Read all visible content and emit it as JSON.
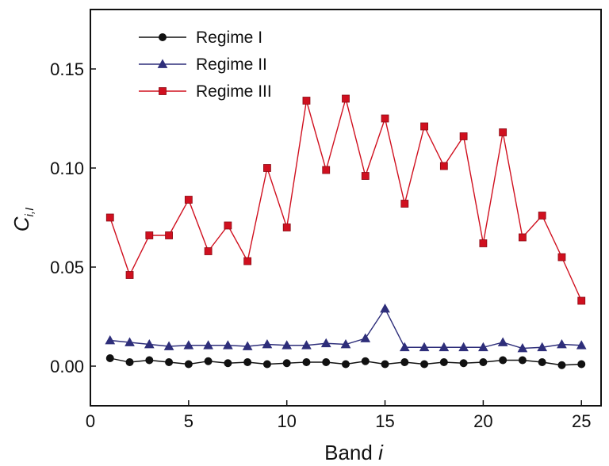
{
  "chart_data": {
    "type": "line",
    "title": "",
    "xlabel": "Band i",
    "ylabel": "C_{i,I}",
    "xlim": [
      0,
      26
    ],
    "ylim": [
      -0.02,
      0.18
    ],
    "xticks": [
      0,
      5,
      10,
      15,
      20,
      25
    ],
    "yticks": [
      0.0,
      0.05,
      0.1,
      0.15
    ],
    "xtick_labels": [
      "0",
      "5",
      "10",
      "15",
      "20",
      "25"
    ],
    "ytick_labels": [
      "0.00",
      "0.05",
      "0.10",
      "0.15"
    ],
    "grid": false,
    "legend_position": "top-left",
    "x": [
      1,
      2,
      3,
      4,
      5,
      6,
      7,
      8,
      9,
      10,
      11,
      12,
      13,
      14,
      15,
      16,
      17,
      18,
      19,
      20,
      21,
      22,
      23,
      24,
      25
    ],
    "series": [
      {
        "name": "Regime I",
        "color": "#111111",
        "marker": "circle",
        "values": [
          0.004,
          0.002,
          0.003,
          0.002,
          0.001,
          0.0025,
          0.0015,
          0.002,
          0.001,
          0.0015,
          0.002,
          0.002,
          0.001,
          0.0025,
          0.001,
          0.002,
          0.001,
          0.002,
          0.0015,
          0.002,
          0.003,
          0.003,
          0.002,
          0.0005,
          0.001
        ]
      },
      {
        "name": "Regime II",
        "color": "#2e2e7a",
        "marker": "triangle",
        "values": [
          0.013,
          0.012,
          0.011,
          0.01,
          0.0105,
          0.0105,
          0.0105,
          0.01,
          0.011,
          0.0105,
          0.0105,
          0.0115,
          0.011,
          0.014,
          0.029,
          0.0095,
          0.0095,
          0.0095,
          0.0095,
          0.0095,
          0.012,
          0.009,
          0.0095,
          0.011,
          0.0105
        ]
      },
      {
        "name": "Regime III",
        "color": "#d0101f",
        "marker": "square",
        "values": [
          0.075,
          0.046,
          0.066,
          0.066,
          0.084,
          0.058,
          0.071,
          0.053,
          0.1,
          0.07,
          0.134,
          0.099,
          0.135,
          0.096,
          0.125,
          0.082,
          0.121,
          0.101,
          0.116,
          0.062,
          0.118,
          0.065,
          0.076,
          0.055,
          0.033
        ]
      }
    ]
  }
}
